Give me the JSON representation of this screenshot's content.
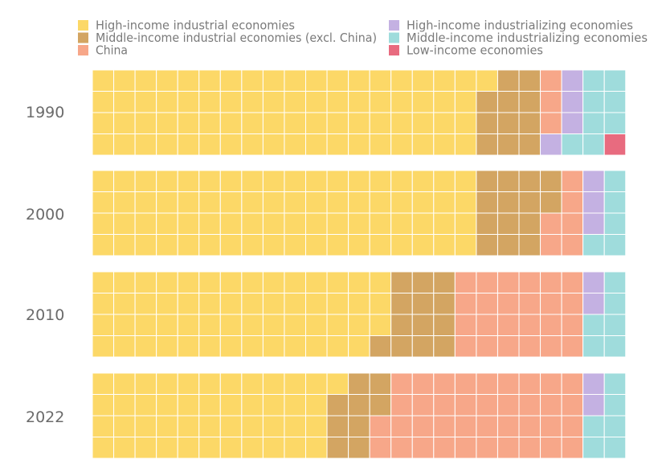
{
  "chart_data": {
    "type": "waffle",
    "units_per_year": 100,
    "legend_position": "top",
    "categories": [
      {
        "key": "hi_ind",
        "name": "High-income industrial economies",
        "color": "#fcd867"
      },
      {
        "key": "mi_ind",
        "name": "Middle-income industrial economies (excl. China)",
        "color": "#d3a562"
      },
      {
        "key": "china",
        "name": "China",
        "color": "#f7a789"
      },
      {
        "key": "hi_izing",
        "name": "High-income industrializing economies",
        "color": "#c4b1e2"
      },
      {
        "key": "mi_izing",
        "name": "Middle-income industrializing economies",
        "color": "#9fdcdc"
      },
      {
        "key": "low",
        "name": "Low-income economies",
        "color": "#e86b7f"
      }
    ],
    "years": [
      {
        "label": "1990",
        "values": {
          "hi_ind": 73,
          "mi_ind": 11,
          "china": 3,
          "hi_izing": 4,
          "mi_izing": 8,
          "low": 1
        }
      },
      {
        "label": "2000",
        "values": {
          "hi_ind": 72,
          "mi_ind": 14,
          "china": 6,
          "hi_izing": 3,
          "mi_izing": 5,
          "low": 0
        }
      },
      {
        "label": "2010",
        "values": {
          "hi_ind": 55,
          "mi_ind": 13,
          "china": 24,
          "hi_izing": 2,
          "mi_izing": 6,
          "low": 0
        }
      },
      {
        "label": "2022",
        "values": {
          "hi_ind": 45,
          "mi_ind": 9,
          "china": 38,
          "hi_izing": 2,
          "mi_izing": 6,
          "low": 0
        }
      }
    ]
  }
}
